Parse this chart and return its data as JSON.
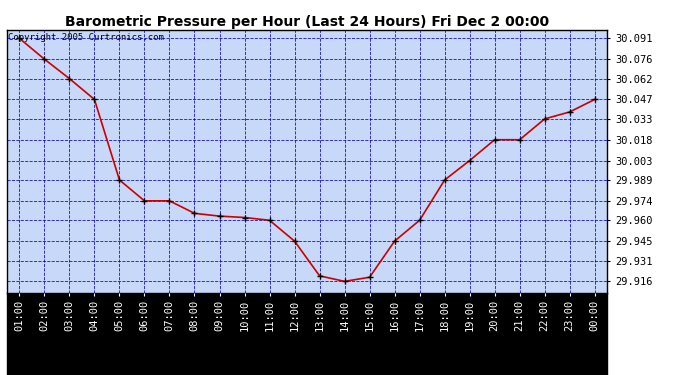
{
  "title": "Barometric Pressure per Hour (Last 24 Hours) Fri Dec 2 00:00",
  "copyright": "Copyright 2005 Curtronics.com",
  "hours": [
    "01:00",
    "02:00",
    "03:00",
    "04:00",
    "05:00",
    "06:00",
    "07:00",
    "08:00",
    "09:00",
    "10:00",
    "11:00",
    "12:00",
    "13:00",
    "14:00",
    "15:00",
    "16:00",
    "17:00",
    "18:00",
    "19:00",
    "20:00",
    "21:00",
    "22:00",
    "23:00",
    "00:00"
  ],
  "values": [
    30.091,
    30.076,
    30.062,
    30.047,
    29.989,
    29.974,
    29.974,
    29.965,
    29.963,
    29.962,
    29.96,
    29.945,
    29.92,
    29.916,
    29.919,
    29.945,
    29.96,
    29.989,
    30.003,
    30.018,
    30.018,
    30.033,
    30.038,
    30.047
  ],
  "yticks": [
    29.916,
    29.931,
    29.945,
    29.96,
    29.974,
    29.989,
    30.003,
    30.018,
    30.033,
    30.047,
    30.062,
    30.076,
    30.091
  ],
  "ylim": [
    29.908,
    30.097
  ],
  "outer_bg": "#ffffff",
  "plot_bg_color": "#c8d8f8",
  "line_color": "#cc0000",
  "marker_color": "#000000",
  "grid_color": "#0000bb",
  "title_color": "#000000",
  "border_color": "#000000",
  "xlabel_bg": "#000000",
  "xlabel_fg": "#ffffff",
  "title_fontsize": 10,
  "tick_fontsize": 7.5,
  "copyright_fontsize": 6.5
}
